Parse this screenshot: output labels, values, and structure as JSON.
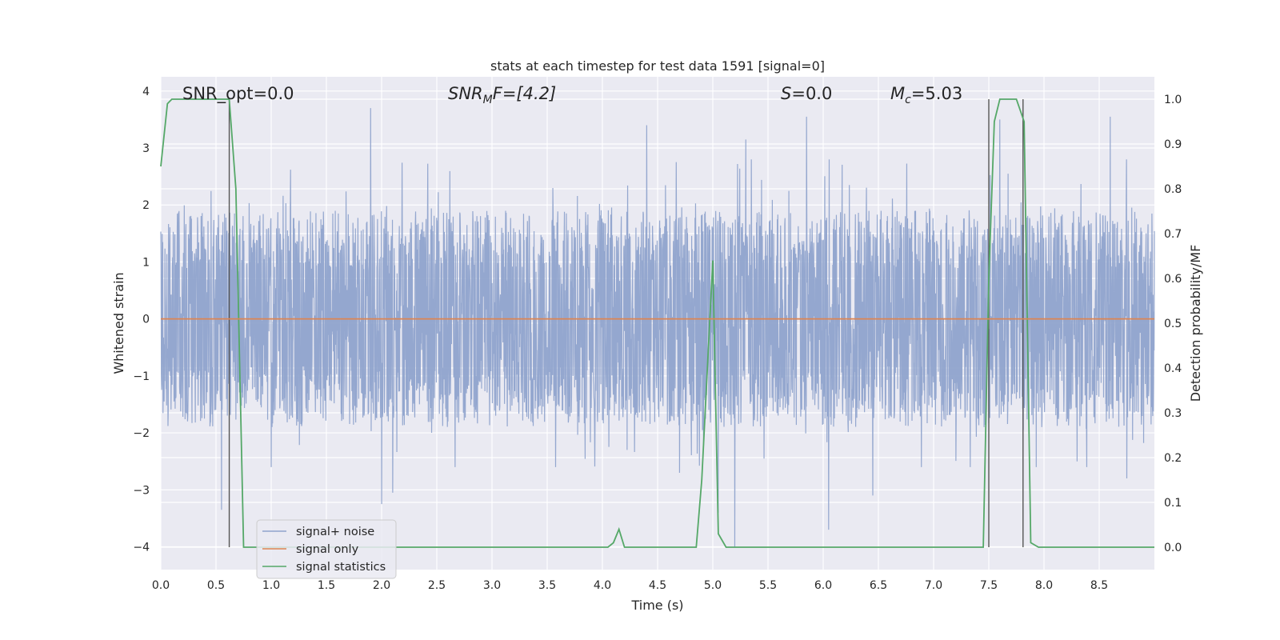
{
  "chart_data": {
    "type": "line",
    "title": "stats at each timestep for test data 1591 [signal=0]",
    "xlabel": "Time (s)",
    "ylabel": "Whitened strain",
    "ylabel_right": "Detection probability/MF",
    "xlim": [
      0,
      9.0
    ],
    "ylim": [
      -4.4,
      4.25
    ],
    "ylim_right": [
      -0.05,
      1.05
    ],
    "x_ticks": [
      "0.0",
      "0.5",
      "1.0",
      "1.5",
      "2.0",
      "2.5",
      "3.0",
      "3.5",
      "4.0",
      "4.5",
      "5.0",
      "5.5",
      "6.0",
      "6.5",
      "7.0",
      "7.5",
      "8.0",
      "8.5"
    ],
    "y_ticks": [
      "−4",
      "−3",
      "−2",
      "−1",
      "0",
      "1",
      "2",
      "3",
      "4"
    ],
    "y_right_ticks": [
      "0.0",
      "0.1",
      "0.2",
      "0.3",
      "0.4",
      "0.5",
      "0.6",
      "0.7",
      "0.8",
      "0.9",
      "1.0"
    ],
    "grid": true,
    "legend_position": "lower-left",
    "annotations": {
      "snr_opt": "SNR_opt=0.0",
      "snr_mf_base": "SNR",
      "snr_mf_sub": "M",
      "snr_mf_rest": "F=[4.2]",
      "s_italic": "S",
      "s_rest": "=0.0",
      "mc_base": "M",
      "mc_sub": "c",
      "mc_rest": "=5.03"
    },
    "series": [
      {
        "name": "signal+ noise",
        "color": "#8fa3cc",
        "description_type": "dense noise band",
        "typical_envelope": [
          -1.7,
          2.0
        ],
        "peak_spikes": [
          {
            "x": 0.55,
            "y": -3.35
          },
          {
            "x": 1.0,
            "y": -2.6
          },
          {
            "x": 1.9,
            "y": 3.7
          },
          {
            "x": 2.0,
            "y": -3.25
          },
          {
            "x": 2.1,
            "y": -3.05
          },
          {
            "x": 4.4,
            "y": 3.4
          },
          {
            "x": 4.7,
            "y": -2.7
          },
          {
            "x": 5.05,
            "y": -3.4
          },
          {
            "x": 5.2,
            "y": -4.0
          },
          {
            "x": 5.3,
            "y": 3.15
          },
          {
            "x": 5.85,
            "y": 3.55
          },
          {
            "x": 6.05,
            "y": -3.7
          },
          {
            "x": 6.45,
            "y": -3.1
          },
          {
            "x": 7.6,
            "y": 3.5
          },
          {
            "x": 8.3,
            "y": -2.5
          },
          {
            "x": 8.6,
            "y": 3.55
          },
          {
            "x": 8.75,
            "y": -2.8
          }
        ]
      },
      {
        "name": "signal only",
        "color": "#dd8452",
        "x": [
          0,
          9.0
        ],
        "y": [
          0,
          0
        ]
      },
      {
        "name": "signal statistics",
        "color": "#55a868",
        "axis": "right",
        "x": [
          0.0,
          0.06,
          0.1,
          0.15,
          0.6,
          0.62,
          0.68,
          0.75,
          0.8,
          4.05,
          4.1,
          4.15,
          4.2,
          4.85,
          4.9,
          5.0,
          5.05,
          5.12,
          5.2,
          7.45,
          7.5,
          7.55,
          7.6,
          7.75,
          7.82,
          7.88,
          7.95,
          9.0
        ],
        "y": [
          0.85,
          0.99,
          1.0,
          1.0,
          1.0,
          1.0,
          0.8,
          0.0,
          0.0,
          0.0,
          0.01,
          0.04,
          0.0,
          0.0,
          0.15,
          0.64,
          0.03,
          0.0,
          0.0,
          0.0,
          0.6,
          0.95,
          1.0,
          1.0,
          0.95,
          0.01,
          0.0,
          0.0
        ]
      }
    ],
    "vertical_markers": [
      0.62,
      7.5,
      7.81
    ]
  },
  "legend": {
    "items": [
      "signal+ noise",
      "signal only",
      "signal statistics"
    ]
  }
}
